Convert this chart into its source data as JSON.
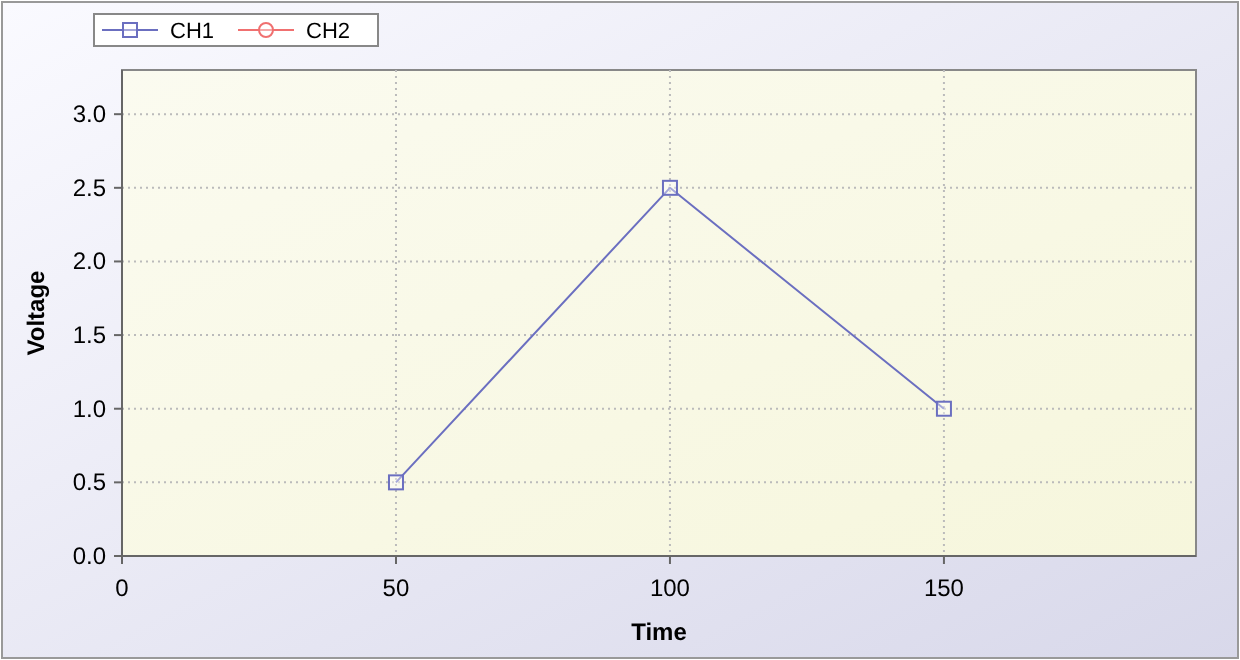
{
  "chart_data": {
    "type": "line",
    "xlabel": "Time",
    "ylabel": "Voltage",
    "x": [
      50,
      100,
      150
    ],
    "series": [
      {
        "name": "CH1",
        "color": "#6b6fc0",
        "values": [
          0.5,
          2.5,
          1.0
        ],
        "marker": "square"
      },
      {
        "name": "CH2",
        "color": "#f07070",
        "values": [
          null,
          null,
          null
        ],
        "marker": "circle"
      }
    ],
    "xlim": [
      0,
      196
    ],
    "xticks": [
      0,
      50,
      100,
      150
    ],
    "ylim": [
      0,
      3.3
    ],
    "yticks": [
      {
        "value": 0,
        "label": "0.0"
      },
      {
        "value": 0.5,
        "label": "0.5"
      },
      {
        "value": 1,
        "label": "1.0"
      },
      {
        "value": 1.5,
        "label": "1.5"
      },
      {
        "value": 2,
        "label": "2.0"
      },
      {
        "value": 2.5,
        "label": "2.5"
      },
      {
        "value": 3,
        "label": "3.0"
      }
    ],
    "grid": true,
    "legend": "top left",
    "line_style": "solid"
  }
}
